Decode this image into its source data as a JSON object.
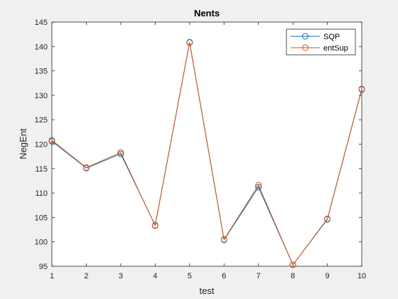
{
  "chart_data": {
    "type": "line",
    "title": "Nents",
    "xlabel": "test",
    "ylabel": "NegEnt",
    "xlim": [
      1,
      10
    ],
    "ylim": [
      95,
      145
    ],
    "xticks": [
      "1",
      "2",
      "3",
      "4",
      "5",
      "6",
      "7",
      "8",
      "9",
      "10"
    ],
    "yticks": [
      "95",
      "100",
      "105",
      "110",
      "115",
      "120",
      "125",
      "130",
      "135",
      "140",
      "145"
    ],
    "x": [
      1,
      2,
      3,
      4,
      5,
      6,
      7,
      8,
      9,
      10
    ],
    "grid": false,
    "legend_position": "top-right",
    "series": [
      {
        "name": "SQP",
        "color": "#0072bd",
        "marker": "circle",
        "values": [
          120.6,
          115.1,
          118.0,
          103.4,
          140.8,
          100.4,
          111.2,
          95.3,
          104.6,
          131.2
        ]
      },
      {
        "name": "entSup",
        "color": "#d95319",
        "marker": "circle",
        "values": [
          120.8,
          115.2,
          118.3,
          103.3,
          140.9,
          100.5,
          111.6,
          95.3,
          104.7,
          131.3
        ]
      }
    ]
  }
}
